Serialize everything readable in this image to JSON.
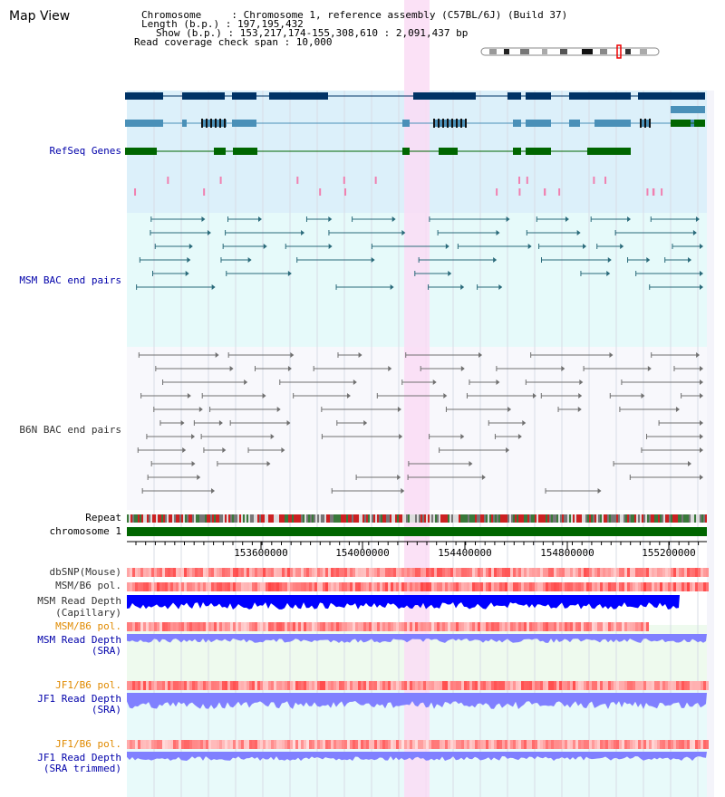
{
  "page": {
    "title": "Map View"
  },
  "info": {
    "chromosome": "Chromosome     : Chromosome 1, reference assembly (C57BL/6J) (Build 37)",
    "length": "Length (b.p.) : 197,195,432",
    "show": "Show (b.p.) : 153,217,174-155,308,610 : 2,091,437 bp",
    "coverage": "Read coverage check span : 10,000"
  },
  "tracks": {
    "refseq": "RefSeq Genes",
    "msm_bac": "MSM BAC end pairs",
    "b6n_bac": "B6N BAC end pairs",
    "repeat": "Repeat",
    "chromosome": "chromosome 1",
    "dbsnp": "dbSNP(Mouse)",
    "msm_b6_pol": "MSM/B6 pol.",
    "msm_depth_cap_1": "MSM Read Depth",
    "msm_depth_cap_2": "(Capillary)",
    "msm_b6_pol_sra": "MSM/B6 pol.",
    "msm_depth_sra_1": "MSM Read Depth",
    "msm_depth_sra_2": "(SRA)",
    "jf1_b6_pol": "JF1/B6 pol.",
    "jf1_depth_1": "JF1 Read Depth",
    "jf1_depth_2": "(SRA)",
    "jf1_b6_pol_trim": "JF1/B6 pol.",
    "jf1_trim_1": "JF1 Read Depth",
    "jf1_trim_2": "(SRA trimmed)"
  },
  "axis": {
    "ticks": [
      "153600000",
      "154000000",
      "154400000",
      "154800000",
      "155200000"
    ]
  },
  "colors": {
    "refseq_bg": "#dcf0fa",
    "msm_bac_bg": "#e6fafa",
    "b6n_bg": "#f8f8fc",
    "highlight": "#fadcf5",
    "gene_dark": "#003366",
    "gene_mid": "#4a90b8",
    "gene_green": "#006600",
    "msm_pair": "#2a6a7a",
    "b6n_pair": "#707070",
    "chrom_bar": "#006600",
    "depth_capillary": "#0000ff",
    "depth_sra": "#8080ff"
  }
}
